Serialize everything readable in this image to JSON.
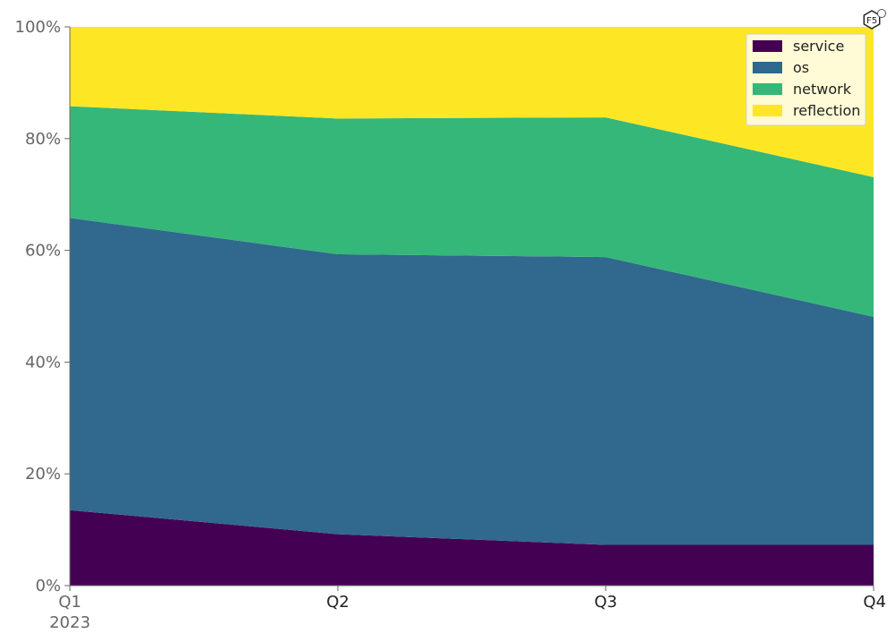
{
  "chart_data": {
    "type": "area",
    "stacked": true,
    "normalized": true,
    "categories": [
      "Q1",
      "Q2",
      "Q3",
      "Q4"
    ],
    "category_sublabels": [
      "2023",
      "",
      "",
      ""
    ],
    "series": [
      {
        "name": "service",
        "color": "#440154",
        "values": [
          13.5,
          9.2,
          7.3,
          7.3
        ]
      },
      {
        "name": "os",
        "color": "#31688e",
        "values": [
          52.3,
          50.1,
          51.5,
          40.8
        ]
      },
      {
        "name": "network",
        "color": "#35b779",
        "values": [
          20.0,
          24.3,
          25.0,
          25.0
        ]
      },
      {
        "name": "reflection",
        "color": "#fde725",
        "values": [
          14.2,
          16.4,
          16.2,
          26.9
        ]
      }
    ],
    "y_ticks": [
      "0%",
      "20%",
      "40%",
      "60%",
      "80%",
      "100%"
    ],
    "ylim": [
      0,
      100
    ],
    "grid": false,
    "legend_position": "top-right"
  },
  "watermark": {
    "text": "F5",
    "icon": "hexagon-logo-icon"
  }
}
